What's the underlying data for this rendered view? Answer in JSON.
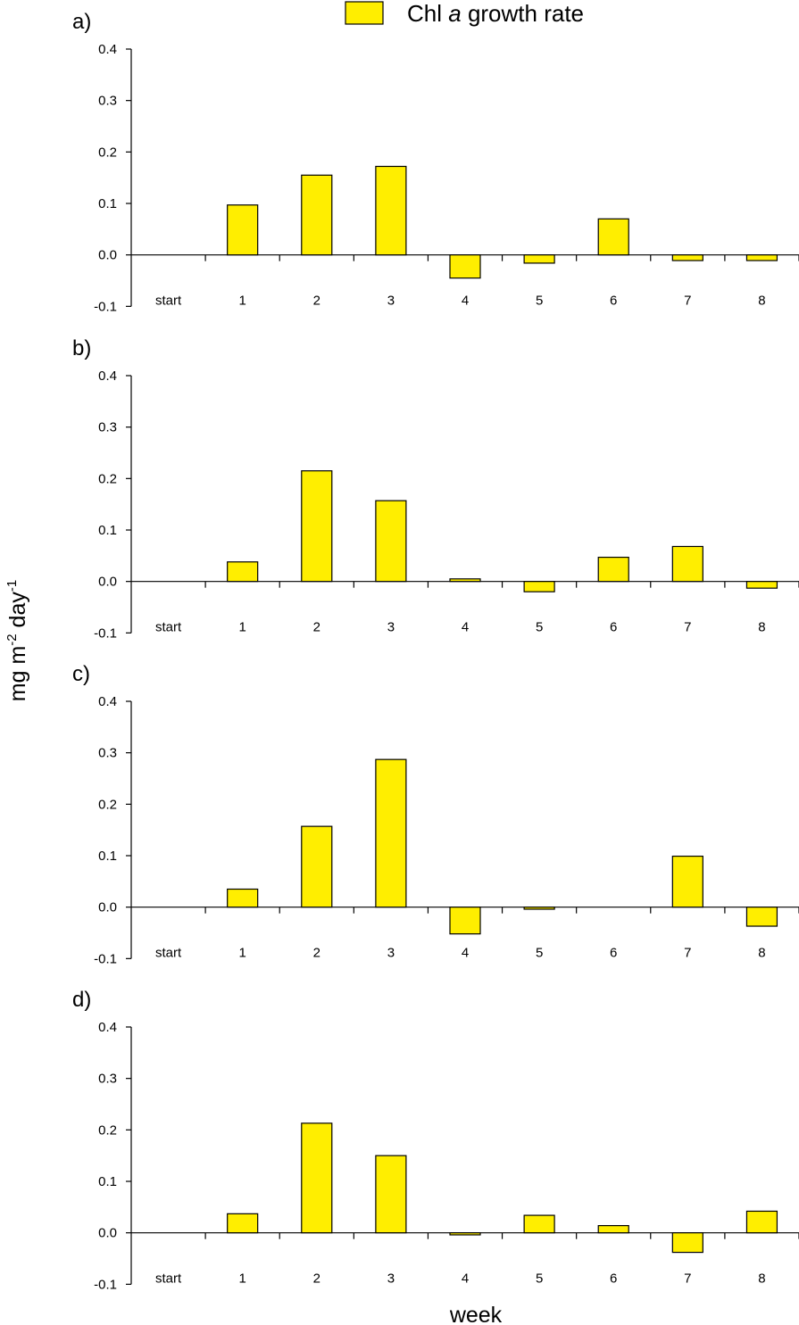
{
  "legend": {
    "label_prefix": "Chl ",
    "label_italic": "a",
    "label_suffix": " growth rate",
    "color": "#ffee00"
  },
  "axes": {
    "ylabel_main": "mg m",
    "ylabel_sup1": "-2",
    "ylabel_mid": " day",
    "ylabel_sup2": "-1",
    "xlabel": "week"
  },
  "chart_data": [
    {
      "type": "bar",
      "panel": "a)",
      "categories": [
        "start",
        "1",
        "2",
        "3",
        "4",
        "5",
        "6",
        "7",
        "8"
      ],
      "series": [
        {
          "name": "Chl a growth rate",
          "values": [
            null,
            0.097,
            0.155,
            0.172,
            -0.045,
            -0.016,
            0.07,
            -0.011,
            -0.011
          ]
        }
      ],
      "ylim": [
        -0.1,
        0.4
      ],
      "yticks": [
        "-0.1",
        "0.0",
        "0.1",
        "0.2",
        "0.3",
        "0.4"
      ]
    },
    {
      "type": "bar",
      "panel": "b)",
      "categories": [
        "start",
        "1",
        "2",
        "3",
        "4",
        "5",
        "6",
        "7",
        "8"
      ],
      "series": [
        {
          "name": "Chl a growth rate",
          "values": [
            null,
            0.038,
            0.215,
            0.157,
            0.005,
            -0.02,
            0.047,
            0.068,
            -0.013
          ]
        }
      ],
      "ylim": [
        -0.1,
        0.4
      ],
      "yticks": [
        "-0.1",
        "0.0",
        "0.1",
        "0.2",
        "0.3",
        "0.4"
      ]
    },
    {
      "type": "bar",
      "panel": "c)",
      "categories": [
        "start",
        "1",
        "2",
        "3",
        "4",
        "5",
        "6",
        "7",
        "8"
      ],
      "series": [
        {
          "name": "Chl a growth rate",
          "values": [
            null,
            0.035,
            0.157,
            0.287,
            -0.052,
            -0.004,
            null,
            0.099,
            -0.037
          ]
        }
      ],
      "ylim": [
        -0.1,
        0.4
      ],
      "yticks": [
        "-0.1",
        "0.0",
        "0.1",
        "0.2",
        "0.3",
        "0.4"
      ]
    },
    {
      "type": "bar",
      "panel": "d)",
      "categories": [
        "start",
        "1",
        "2",
        "3",
        "4",
        "5",
        "6",
        "7",
        "8"
      ],
      "series": [
        {
          "name": "Chl a growth rate",
          "values": [
            null,
            0.037,
            0.213,
            0.15,
            -0.004,
            0.034,
            0.014,
            -0.038,
            0.042
          ]
        }
      ],
      "ylim": [
        -0.1,
        0.4
      ],
      "yticks": [
        "-0.1",
        "0.0",
        "0.1",
        "0.2",
        "0.3",
        "0.4"
      ]
    }
  ]
}
